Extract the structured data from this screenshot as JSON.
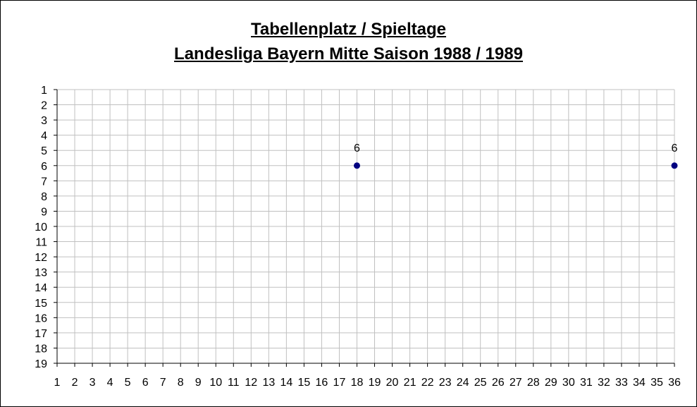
{
  "chart_data": {
    "type": "scatter",
    "title": "Tabellenplatz / Spieltage",
    "subtitle": "Landesliga Bayern Mitte Saison 1988 / 1989",
    "xlabel": "",
    "ylabel": "",
    "xlim": [
      1,
      36
    ],
    "ylim": [
      1,
      19
    ],
    "y_inverted": true,
    "grid": true,
    "legend": "none",
    "x_ticks": [
      1,
      2,
      3,
      4,
      5,
      6,
      7,
      8,
      9,
      10,
      11,
      12,
      13,
      14,
      15,
      16,
      17,
      18,
      19,
      20,
      21,
      22,
      23,
      24,
      25,
      26,
      27,
      28,
      29,
      30,
      31,
      32,
      33,
      34,
      35,
      36
    ],
    "y_ticks": [
      1,
      2,
      3,
      4,
      5,
      6,
      7,
      8,
      9,
      10,
      11,
      12,
      13,
      14,
      15,
      16,
      17,
      18,
      19
    ],
    "series": [
      {
        "color": "#000080",
        "points": [
          {
            "x": 18,
            "y": 6,
            "label": "6"
          },
          {
            "x": 36,
            "y": 6,
            "label": "6"
          }
        ]
      }
    ]
  },
  "colors": {
    "grid": "#c0c0c0",
    "axis": "#000000",
    "marker": "#000080"
  }
}
